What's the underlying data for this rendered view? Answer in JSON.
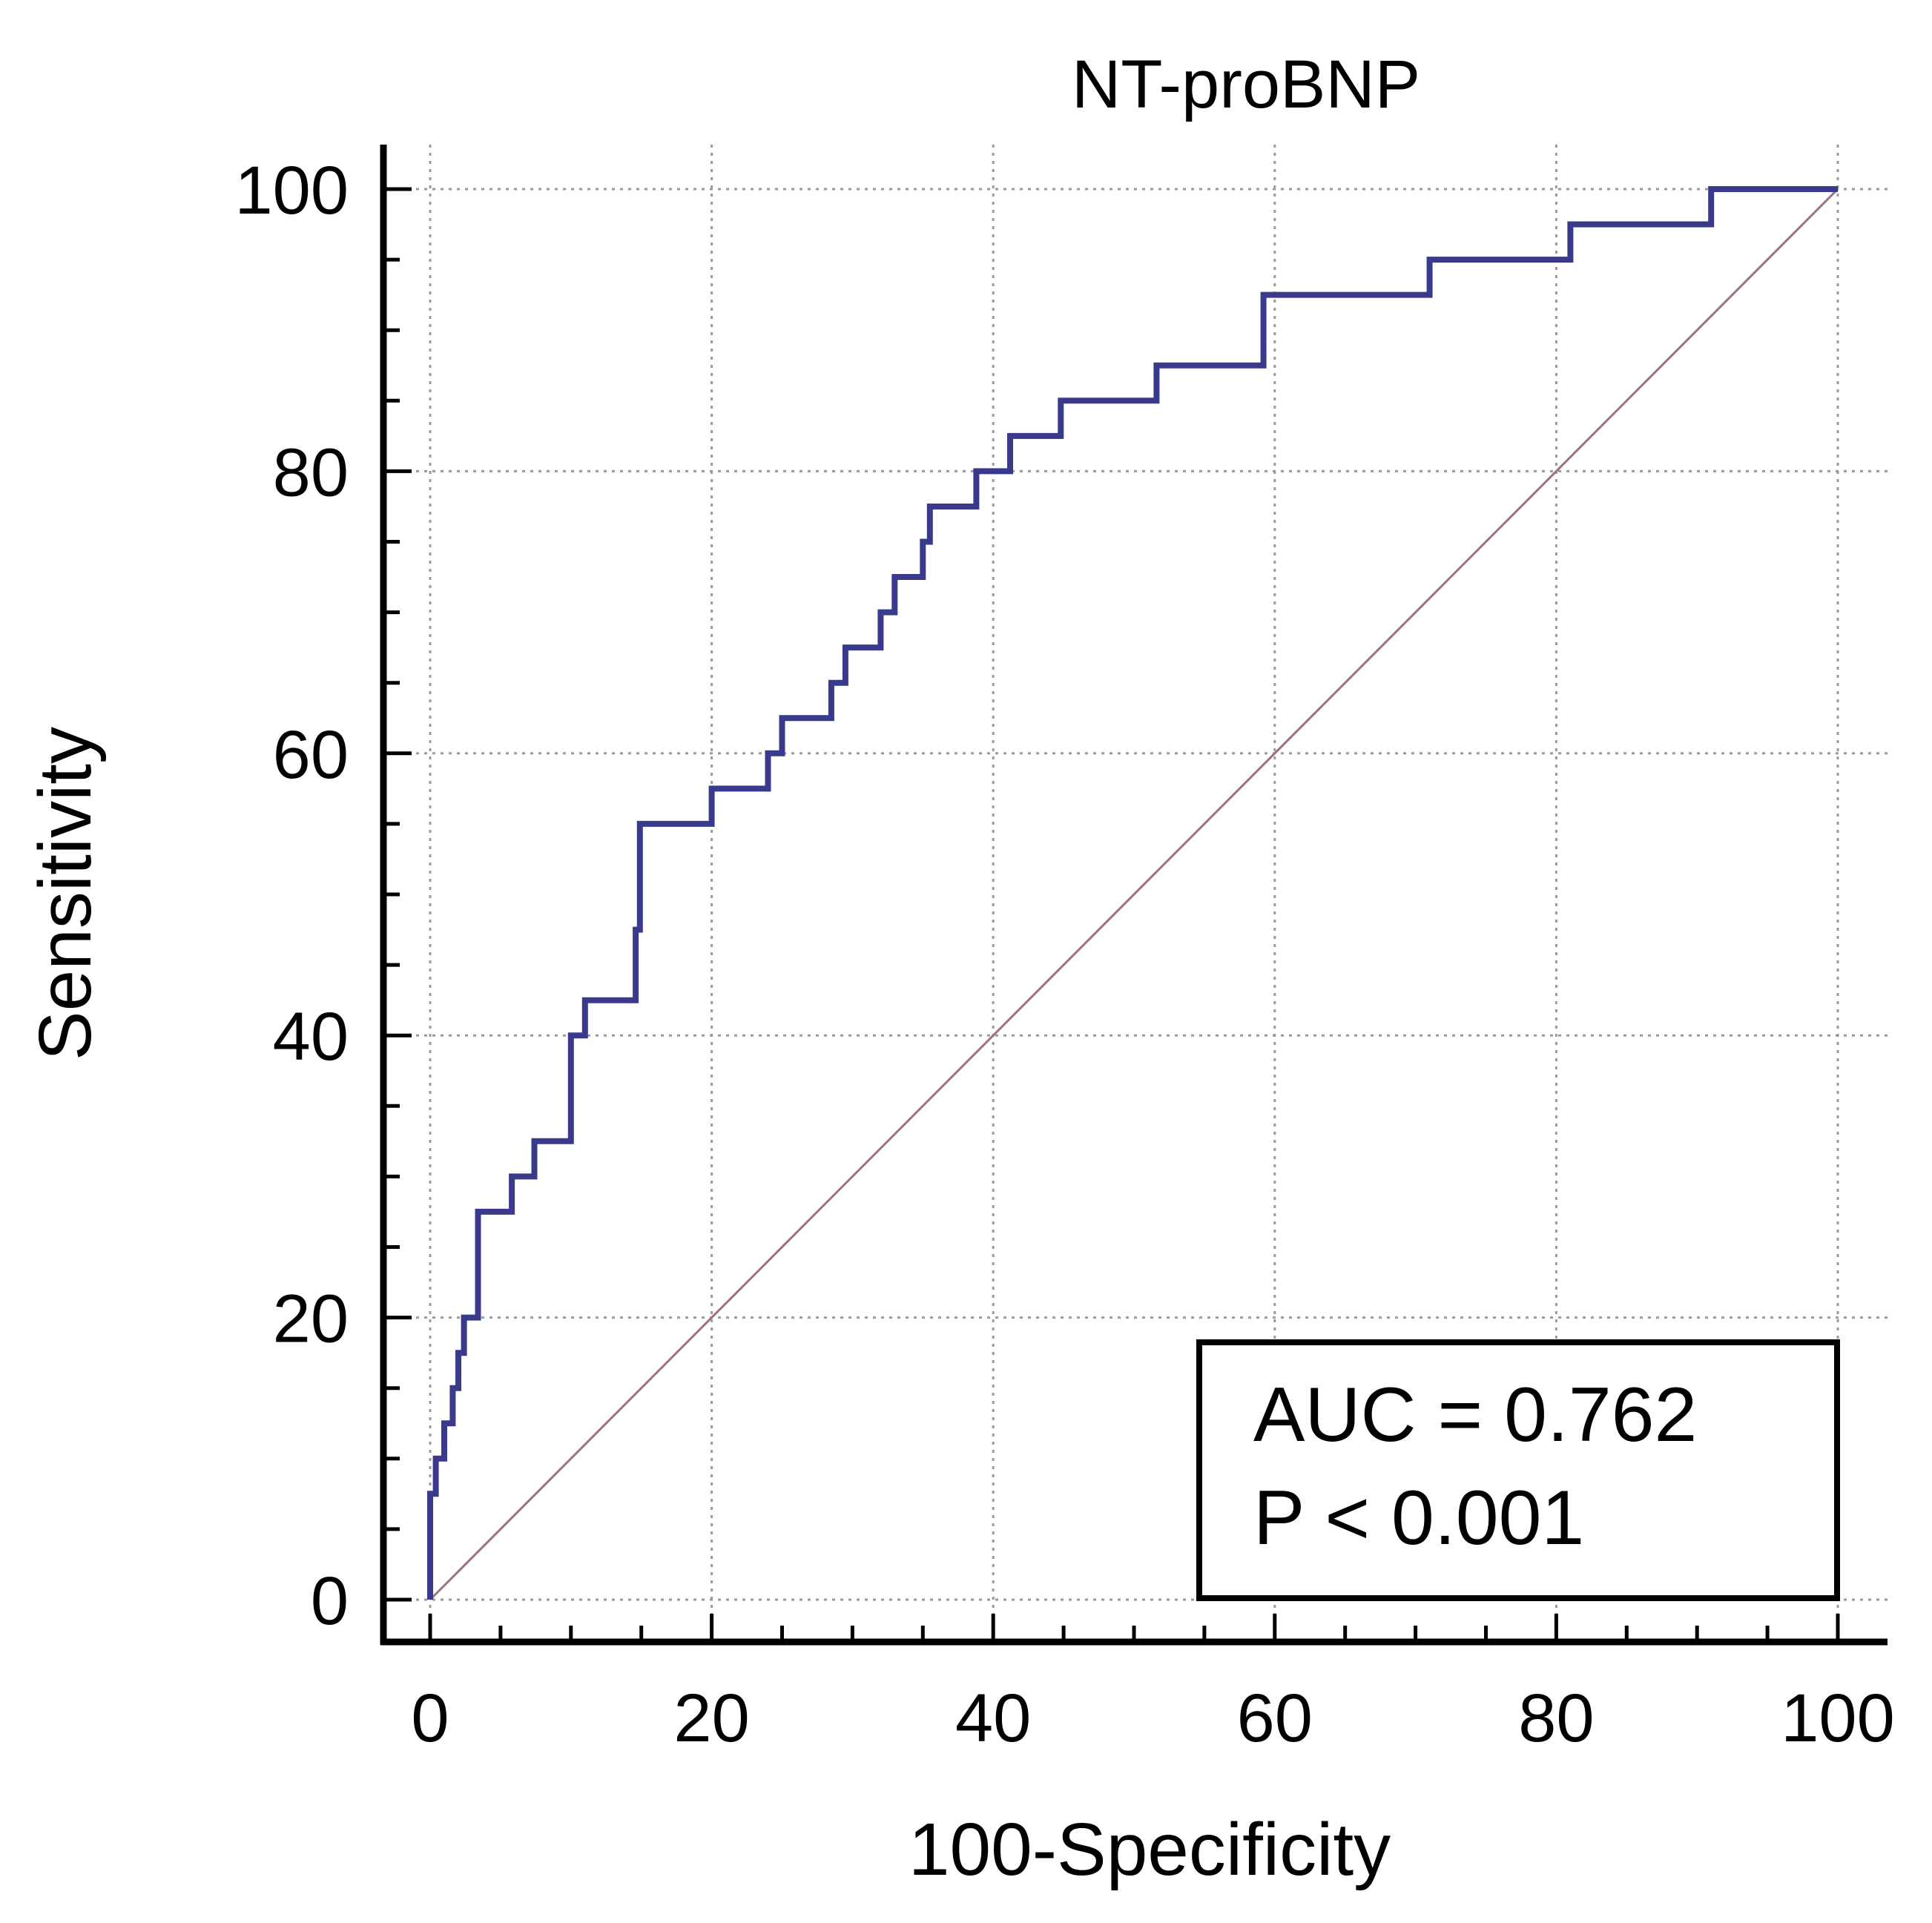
{
  "chart_data": {
    "type": "line",
    "title": "NT-proBNP",
    "xlabel": "100-Specificity",
    "ylabel": "Sensitivity",
    "xlim": [
      0,
      100
    ],
    "ylim": [
      0,
      100
    ],
    "xticks": [
      "0",
      "20",
      "40",
      "60",
      "80",
      "100"
    ],
    "yticks": [
      "0",
      "20",
      "40",
      "60",
      "80",
      "100"
    ],
    "grid": true,
    "series": [
      {
        "name": "ROC curve",
        "color": "#3a3a8c",
        "x": [
          0,
          0,
          0.4,
          0.4,
          1.0,
          1.0,
          1.6,
          1.6,
          2.0,
          2.0,
          2.4,
          2.4,
          3.4,
          3.4,
          5.8,
          5.8,
          7.4,
          7.4,
          10.0,
          10.0,
          10.4,
          10.4,
          11.0,
          11.0,
          14.6,
          14.6,
          14.9,
          14.9,
          20.0,
          20.0,
          24.0,
          24.0,
          25.0,
          25.0,
          28.5,
          28.5,
          29.5,
          29.5,
          32.0,
          32.0,
          33.0,
          33.0,
          35.0,
          35.0,
          35.5,
          35.5,
          38.8,
          38.8,
          41.2,
          41.2,
          44.8,
          44.8,
          51.6,
          51.6,
          59.2,
          59.2,
          71.0,
          71.0,
          81.0,
          81.0,
          91.0,
          91.0,
          100.0
        ],
        "y": [
          0,
          7.5,
          7.5,
          10.0,
          10.0,
          12.5,
          12.5,
          15.0,
          15.0,
          17.5,
          17.5,
          20.0,
          20.0,
          27.5,
          27.5,
          30.0,
          30.0,
          32.5,
          32.5,
          40.0,
          40.0,
          40.0,
          40.0,
          42.5,
          42.5,
          47.5,
          47.5,
          55.0,
          55.0,
          57.5,
          57.5,
          60.0,
          60.0,
          62.5,
          62.5,
          65.0,
          65.0,
          67.5,
          67.5,
          70.0,
          70.0,
          72.5,
          72.5,
          75.0,
          75.0,
          77.5,
          77.5,
          80.0,
          80.0,
          82.5,
          82.5,
          85.0,
          85.0,
          87.5,
          87.5,
          92.5,
          92.5,
          95.0,
          95.0,
          97.5,
          97.5,
          100.0,
          100.0
        ]
      },
      {
        "name": "Reference line",
        "color": "#a07080",
        "x": [
          0,
          100
        ],
        "y": [
          0,
          100
        ]
      }
    ],
    "annotations": {
      "auc": "AUC = 0.762",
      "p": "P < 0.001"
    }
  }
}
